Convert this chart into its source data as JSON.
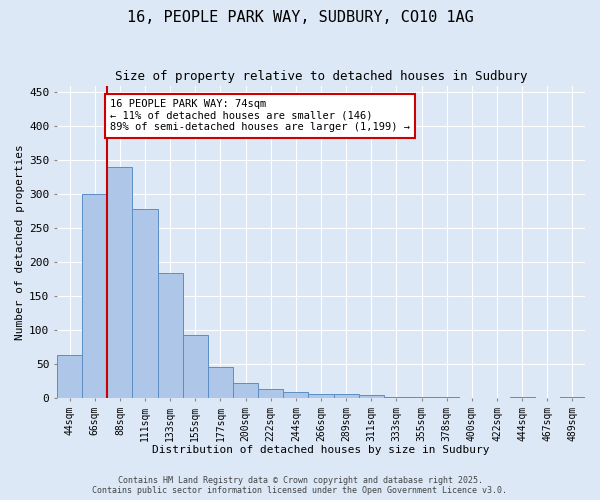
{
  "title_line1": "16, PEOPLE PARK WAY, SUDBURY, CO10 1AG",
  "title_line2": "Size of property relative to detached houses in Sudbury",
  "xlabel": "Distribution of detached houses by size in Sudbury",
  "ylabel": "Number of detached properties",
  "bar_labels": [
    "44sqm",
    "66sqm",
    "88sqm",
    "111sqm",
    "133sqm",
    "155sqm",
    "177sqm",
    "200sqm",
    "222sqm",
    "244sqm",
    "266sqm",
    "289sqm",
    "311sqm",
    "333sqm",
    "355sqm",
    "378sqm",
    "400sqm",
    "422sqm",
    "444sqm",
    "467sqm",
    "489sqm"
  ],
  "bar_values": [
    63,
    301,
    340,
    278,
    184,
    93,
    45,
    22,
    13,
    9,
    6,
    6,
    4,
    2,
    2,
    1,
    0,
    0,
    1,
    0,
    2
  ],
  "bar_color": "#aec6e8",
  "bar_edge_color": "#5b8ec4",
  "vline_x_index": 1,
  "vline_color": "#cc0000",
  "ylim": [
    0,
    460
  ],
  "yticks": [
    0,
    50,
    100,
    150,
    200,
    250,
    300,
    350,
    400,
    450
  ],
  "annotation_text": "16 PEOPLE PARK WAY: 74sqm\n← 11% of detached houses are smaller (146)\n89% of semi-detached houses are larger (1,199) →",
  "annotation_box_color": "#ffffff",
  "annotation_border_color": "#cc0000",
  "footer_line1": "Contains HM Land Registry data © Crown copyright and database right 2025.",
  "footer_line2": "Contains public sector information licensed under the Open Government Licence v3.0.",
  "bg_color": "#dce8f5",
  "grid_color": "#ffffff",
  "title_fontsize": 11,
  "subtitle_fontsize": 9,
  "tick_fontsize": 7,
  "axis_label_fontsize": 8,
  "annotation_fontsize": 7.5,
  "footer_fontsize": 6
}
